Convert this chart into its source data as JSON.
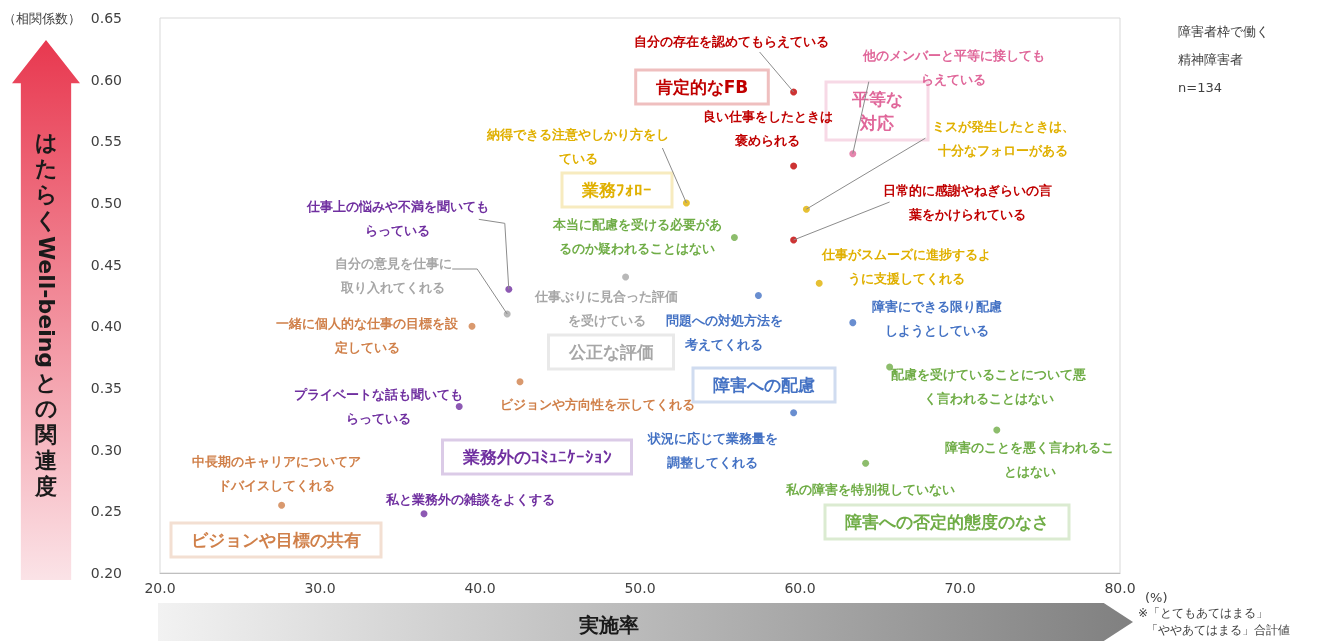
{
  "chart_data": {
    "type": "scatter",
    "xlabel": "実施率",
    "ylabel": "はたらくWell-beingとの関連度",
    "xlim": [
      20,
      80
    ],
    "ylim": [
      0.2,
      0.65
    ],
    "xticks": [
      {
        "value": 20,
        "label": "20.0"
      },
      {
        "value": 30,
        "label": "30.0"
      },
      {
        "value": 40,
        "label": "40.0"
      },
      {
        "value": 50,
        "label": "50.0"
      },
      {
        "value": 60,
        "label": "60.0"
      },
      {
        "value": 70,
        "label": "70.0"
      },
      {
        "value": 80,
        "label": "80.0"
      }
    ],
    "yticks": [
      {
        "value": 0.2,
        "label": "0.20"
      },
      {
        "value": 0.25,
        "label": "0.25"
      },
      {
        "value": 0.3,
        "label": "0.30"
      },
      {
        "value": 0.35,
        "label": "0.35"
      },
      {
        "value": 0.4,
        "label": "0.40"
      },
      {
        "value": 0.45,
        "label": "0.45"
      },
      {
        "value": 0.5,
        "label": "0.50"
      },
      {
        "value": 0.55,
        "label": "0.55"
      },
      {
        "value": 0.6,
        "label": "0.60"
      },
      {
        "value": 0.65,
        "label": "0.65"
      }
    ],
    "grid": false,
    "marker": "circle",
    "series": [
      {
        "name": "肯定的なFB",
        "color": "#c00000",
        "x": [
          59.6,
          59.6,
          59.6
        ],
        "values": [
          0.59,
          0.53,
          0.47
        ]
      },
      {
        "name": "平等な対応",
        "color": "#e0679a",
        "x": [
          63.3
        ],
        "values": [
          0.54
        ]
      },
      {
        "name": "業務ﾌｫﾛｰ",
        "color": "#e0b000",
        "x": [
          60.4,
          52.9,
          61.2
        ],
        "values": [
          0.495,
          0.5,
          0.435
        ]
      },
      {
        "name": "公正な評価",
        "color": "#a6a6a6",
        "x": [
          41.7,
          49.1
        ],
        "values": [
          0.41,
          0.44
        ]
      },
      {
        "name": "ビジョンや目標の共有",
        "color": "#d0804a",
        "x": [
          39.5,
          42.5,
          27.6
        ],
        "values": [
          0.4,
          0.355,
          0.255
        ]
      },
      {
        "name": "業務外のｺﾐｭﾆｹｰｼｮﾝ",
        "color": "#7030a0",
        "x": [
          41.8,
          38.7,
          36.5
        ],
        "values": [
          0.43,
          0.335,
          0.248
        ]
      },
      {
        "name": "障害への配慮",
        "color": "#4472c4",
        "x": [
          57.4,
          63.3,
          59.6
        ],
        "values": [
          0.425,
          0.403,
          0.33
        ]
      },
      {
        "name": "障害への否定的態度のなさ",
        "color": "#70ad47",
        "x": [
          55.9,
          65.6,
          72.3,
          64.1
        ],
        "values": [
          0.472,
          0.367,
          0.316,
          0.289
        ]
      }
    ],
    "annotations": [
      {
        "text": "自分の存在を認めてもらえている",
        "x": 59.6,
        "y": 0.59
      },
      {
        "text": "良い仕事をしたときは褒められる",
        "x": 59.6,
        "y": 0.53
      },
      {
        "text": "日常的に感謝やねぎらいの言葉をかけられている",
        "x": 59.6,
        "y": 0.47
      },
      {
        "text": "他のメンバーと平等に接してもらえている",
        "x": 63.3,
        "y": 0.54
      },
      {
        "text": "ミスが発生したときは、十分なフォローがある",
        "x": 60.4,
        "y": 0.495
      },
      {
        "text": "納得できる注意やしかり方をしている",
        "x": 52.9,
        "y": 0.5
      },
      {
        "text": "仕事がスムーズに進捗するように支援してくれる",
        "x": 61.2,
        "y": 0.435
      },
      {
        "text": "本当に配慮を受ける必要があるのか疑われることはない",
        "x": 55.9,
        "y": 0.472
      },
      {
        "text": "仕事上の悩みや不満を聞いてもらっている",
        "x": 41.8,
        "y": 0.43
      },
      {
        "text": "自分の意見を仕事に取り入れてくれる",
        "x": 41.7,
        "y": 0.41
      },
      {
        "text": "仕事ぶりに見合った評価を受けている",
        "x": 49.1,
        "y": 0.44
      },
      {
        "text": "一緒に個人的な仕事の目標を設定している",
        "x": 39.5,
        "y": 0.4
      },
      {
        "text": "ビジョンや方向性を示してくれる",
        "x": 42.5,
        "y": 0.355
      },
      {
        "text": "中長期のキャリアについてアドバイスしてくれる",
        "x": 27.6,
        "y": 0.255
      },
      {
        "text": "プライベートな話も聞いてもらっている",
        "x": 38.7,
        "y": 0.335
      },
      {
        "text": "私と業務外の雑談をよくする",
        "x": 36.5,
        "y": 0.248
      },
      {
        "text": "問題への対処方法を考えてくれる",
        "x": 57.4,
        "y": 0.425
      },
      {
        "text": "障害にできる限り配慮しようとしている",
        "x": 63.3,
        "y": 0.403
      },
      {
        "text": "状況に応じて業務量を調整してくれる",
        "x": 59.6,
        "y": 0.33
      },
      {
        "text": "配慮を受けていることについて悪く言われることはない",
        "x": 65.6,
        "y": 0.367
      },
      {
        "text": "障害のことを悪く言われることはない",
        "x": 72.3,
        "y": 0.316
      },
      {
        "text": "私の障害を特別視していない",
        "x": 64.1,
        "y": 0.289
      },
      "（相関係数）",
      "(%)",
      "障害者枠で働く",
      "精神障害者",
      "n=134",
      "※「とてもあてはまる」",
      "「ややあてはまる」合計値"
    ]
  }
}
